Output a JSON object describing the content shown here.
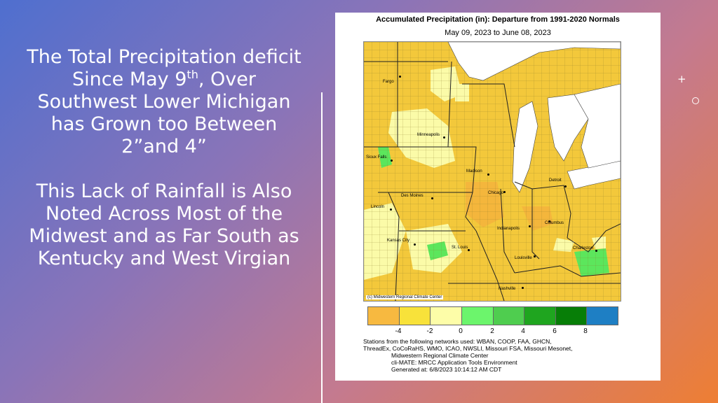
{
  "slide": {
    "text_line1": "The Total Precipitation  deficit",
    "text_line2_a": "Since May 9",
    "text_line2_sup": "th",
    "text_line2_b": ", Over",
    "text_line3": "Southwest Lower Michigan",
    "text_line4": "has Grown too Between",
    "text_line5": "2”and  4”",
    "text_line6": "This Lack of Rainfall is Also",
    "text_line7": "Noted Across Most of the",
    "text_line8": "Midwest  and as Far South as",
    "text_line9": "Kentucky and West Virgian"
  },
  "map": {
    "title": "Accumulated Precipitation (in): Departure from 1991-2020 Normals",
    "subtitle": "May 09, 2023 to June 08, 2023",
    "credit": "(c) Midwestern Regional Climate Center",
    "cities": {
      "fargo": "Fargo",
      "minneapolis": "Minneapolis",
      "sioux_falls": "Sioux Falls",
      "madison": "Madison",
      "detroit": "Detroit",
      "des_moines": "Des Moines",
      "chicago": "Chicago",
      "lincoln": "Lincoln",
      "columbus": "Columbus",
      "indianapolis": "Indianapolis",
      "kansas_city": "Kansas City",
      "st_louis": "St. Louis",
      "charleston": "Charleston",
      "louisville": "Louisville",
      "nashville": "Nashville"
    },
    "colors": {
      "deficit_orange": "#f4b63c",
      "deficit_yellow": "#f3c83b",
      "near_normal": "#fbfba8",
      "surplus_green": "#5ce65c",
      "water": "#ffffff"
    }
  },
  "legend": {
    "colors": [
      "#f7b940",
      "#f8e23a",
      "#fdfda8",
      "#6cf56c",
      "#4fcd4f",
      "#1fa51f",
      "#077e07",
      "#1e7fc4"
    ],
    "ticks": [
      "-4",
      "-2",
      "0",
      "2",
      "4",
      "6",
      "8"
    ]
  },
  "footer": {
    "line1": "Stations from the following networks used: WBAN, COOP, FAA, GHCN,",
    "line2": "ThreadEx, CoCoRaHS, WMO, ICAO, NWSLI, Missouri FSA, Missouri Mesonet,",
    "line3": "Midwestern Regional Climate Center",
    "line4": "cli-MATE: MRCC Application Tools Environment",
    "line5": "Generated at: 6/8/2023 10:14:12 AM CDT"
  }
}
